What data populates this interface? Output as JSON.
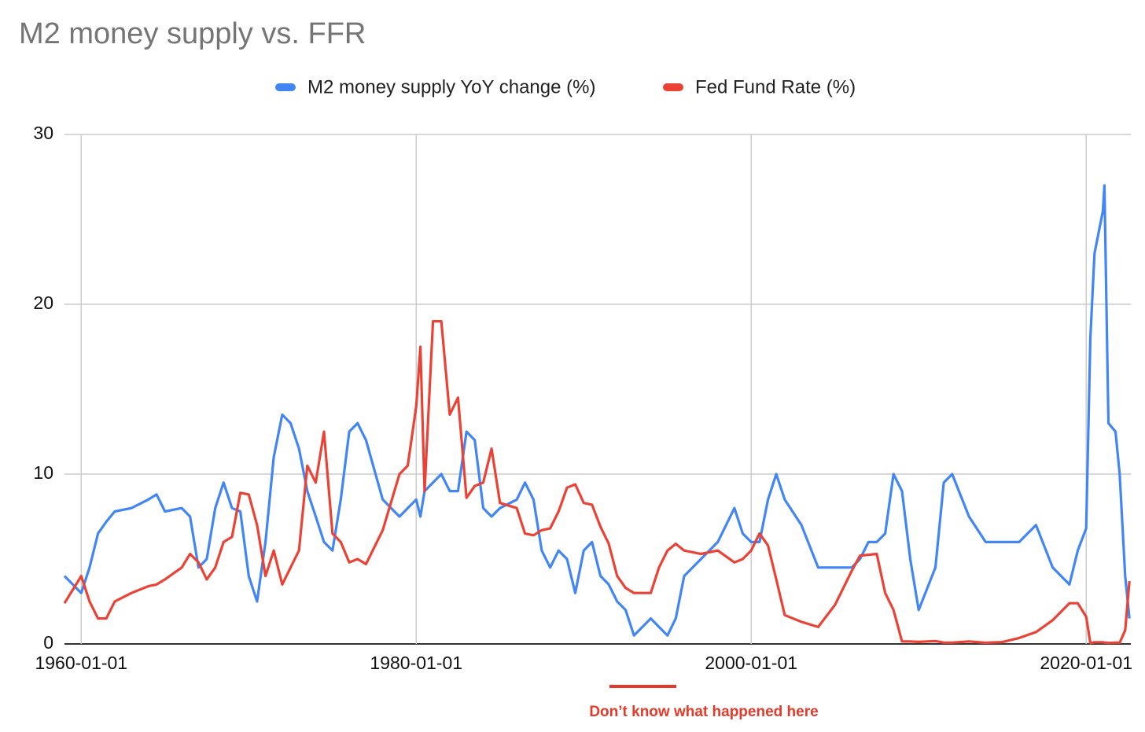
{
  "chart_data": {
    "type": "line",
    "title": "M2 money supply vs. FFR",
    "annotation": "Don’t know what happened here",
    "x": [
      "1959-01-01",
      "1960-01-01",
      "1960-07-01",
      "1961-01-01",
      "1961-07-01",
      "1962-01-01",
      "1963-01-01",
      "1964-01-01",
      "1964-07-01",
      "1965-01-01",
      "1966-01-01",
      "1966-07-01",
      "1967-01-01",
      "1967-07-01",
      "1968-01-01",
      "1968-07-01",
      "1969-01-01",
      "1969-07-01",
      "1970-01-01",
      "1970-07-01",
      "1971-01-01",
      "1971-07-01",
      "1972-01-01",
      "1972-07-01",
      "1973-01-01",
      "1973-07-01",
      "1974-01-01",
      "1974-07-01",
      "1975-01-01",
      "1975-07-01",
      "1976-01-01",
      "1976-07-01",
      "1977-01-01",
      "1978-01-01",
      "1979-01-01",
      "1979-07-01",
      "1980-01-01",
      "1980-04-01",
      "1980-07-01",
      "1981-01-01",
      "1981-07-01",
      "1982-01-01",
      "1982-07-01",
      "1983-01-01",
      "1983-07-01",
      "1984-01-01",
      "1984-07-01",
      "1985-01-01",
      "1986-01-01",
      "1986-07-01",
      "1987-01-01",
      "1987-07-01",
      "1988-01-01",
      "1988-07-01",
      "1989-01-01",
      "1989-07-01",
      "1990-01-01",
      "1990-07-01",
      "1991-01-01",
      "1991-07-01",
      "1992-01-01",
      "1992-07-01",
      "1993-01-01",
      "1994-01-01",
      "1994-07-01",
      "1995-01-01",
      "1995-07-01",
      "1996-01-01",
      "1997-01-01",
      "1998-01-01",
      "1999-01-01",
      "1999-07-01",
      "2000-01-01",
      "2000-07-01",
      "2001-01-01",
      "2001-07-01",
      "2002-01-01",
      "2003-01-01",
      "2004-01-01",
      "2005-01-01",
      "2006-01-01",
      "2006-07-01",
      "2007-01-01",
      "2007-07-01",
      "2008-01-01",
      "2008-07-01",
      "2009-01-01",
      "2009-07-01",
      "2010-01-01",
      "2011-01-01",
      "2011-07-01",
      "2012-01-01",
      "2013-01-01",
      "2014-01-01",
      "2015-01-01",
      "2016-01-01",
      "2017-01-01",
      "2018-01-01",
      "2019-01-01",
      "2019-07-01",
      "2020-01-01",
      "2020-04-01",
      "2020-07-01",
      "2021-01-01",
      "2021-02-01",
      "2021-05-01",
      "2021-10-01",
      "2022-01-01",
      "2022-05-01",
      "2022-08-01"
    ],
    "series": [
      {
        "name": "M2 money supply YoY change (%)",
        "color": "#4285f4",
        "values": [
          4.0,
          3.0,
          4.5,
          6.5,
          7.2,
          7.8,
          8.0,
          8.5,
          8.8,
          7.8,
          8.0,
          7.5,
          4.5,
          5.0,
          8.0,
          9.5,
          8.0,
          7.8,
          4.0,
          2.5,
          6.0,
          11.0,
          13.5,
          13.0,
          11.5,
          9.0,
          7.5,
          6.0,
          5.5,
          8.5,
          12.5,
          13.0,
          12.0,
          8.5,
          7.5,
          8.0,
          8.5,
          7.5,
          9.0,
          9.5,
          10.0,
          9.0,
          9.0,
          12.5,
          12.0,
          8.0,
          7.5,
          8.0,
          8.5,
          9.5,
          8.5,
          5.5,
          4.5,
          5.5,
          5.0,
          3.0,
          5.5,
          6.0,
          4.0,
          3.5,
          2.5,
          2.0,
          0.5,
          1.5,
          1.0,
          0.5,
          1.5,
          4.0,
          5.0,
          6.0,
          8.0,
          6.5,
          6.0,
          6.0,
          8.5,
          10.0,
          8.5,
          7.0,
          4.5,
          4.5,
          4.5,
          5.0,
          6.0,
          6.0,
          6.5,
          10.0,
          9.0,
          5.0,
          2.0,
          4.5,
          9.5,
          10.0,
          7.5,
          6.0,
          6.0,
          6.0,
          7.0,
          4.5,
          3.5,
          5.5,
          6.8,
          18.0,
          23.0,
          25.5,
          27.0,
          13.0,
          12.5,
          10.0,
          4.0,
          1.5
        ]
      },
      {
        "name": "Fed Fund Rate (%)",
        "color": "#ea4335",
        "values": [
          2.4,
          4.0,
          2.5,
          1.5,
          1.5,
          2.5,
          3.0,
          3.4,
          3.5,
          3.8,
          4.5,
          5.3,
          4.8,
          3.8,
          4.5,
          6.0,
          6.3,
          8.9,
          8.8,
          7.0,
          4.0,
          5.5,
          3.5,
          4.5,
          5.5,
          10.5,
          9.5,
          12.5,
          6.5,
          6.0,
          4.8,
          5.0,
          4.7,
          6.7,
          10.0,
          10.5,
          14.0,
          17.5,
          9.0,
          19.0,
          19.0,
          13.5,
          14.5,
          8.6,
          9.3,
          9.5,
          11.5,
          8.3,
          8.0,
          6.5,
          6.4,
          6.7,
          6.8,
          7.8,
          9.2,
          9.4,
          8.3,
          8.2,
          6.9,
          5.9,
          4.0,
          3.3,
          3.0,
          3.0,
          4.5,
          5.5,
          5.9,
          5.5,
          5.3,
          5.5,
          4.8,
          5.0,
          5.5,
          6.5,
          5.8,
          3.8,
          1.7,
          1.3,
          1.0,
          2.3,
          4.3,
          5.2,
          5.25,
          5.3,
          3.0,
          2.0,
          0.15,
          0.15,
          0.12,
          0.17,
          0.08,
          0.08,
          0.15,
          0.07,
          0.11,
          0.35,
          0.7,
          1.4,
          2.4,
          2.4,
          1.6,
          0.05,
          0.1,
          0.1,
          0.08,
          0.06,
          0.08,
          0.08,
          0.8,
          3.7
        ]
      }
    ],
    "xlim": [
      "1959-01-01",
      "2022-09-01"
    ],
    "xticks": [
      "1960-01-01",
      "1980-01-01",
      "2000-01-01",
      "2020-01-01"
    ],
    "ylim": [
      0,
      30
    ],
    "yticks": [
      0,
      10,
      20,
      30
    ],
    "grid": true,
    "legend": "top"
  }
}
